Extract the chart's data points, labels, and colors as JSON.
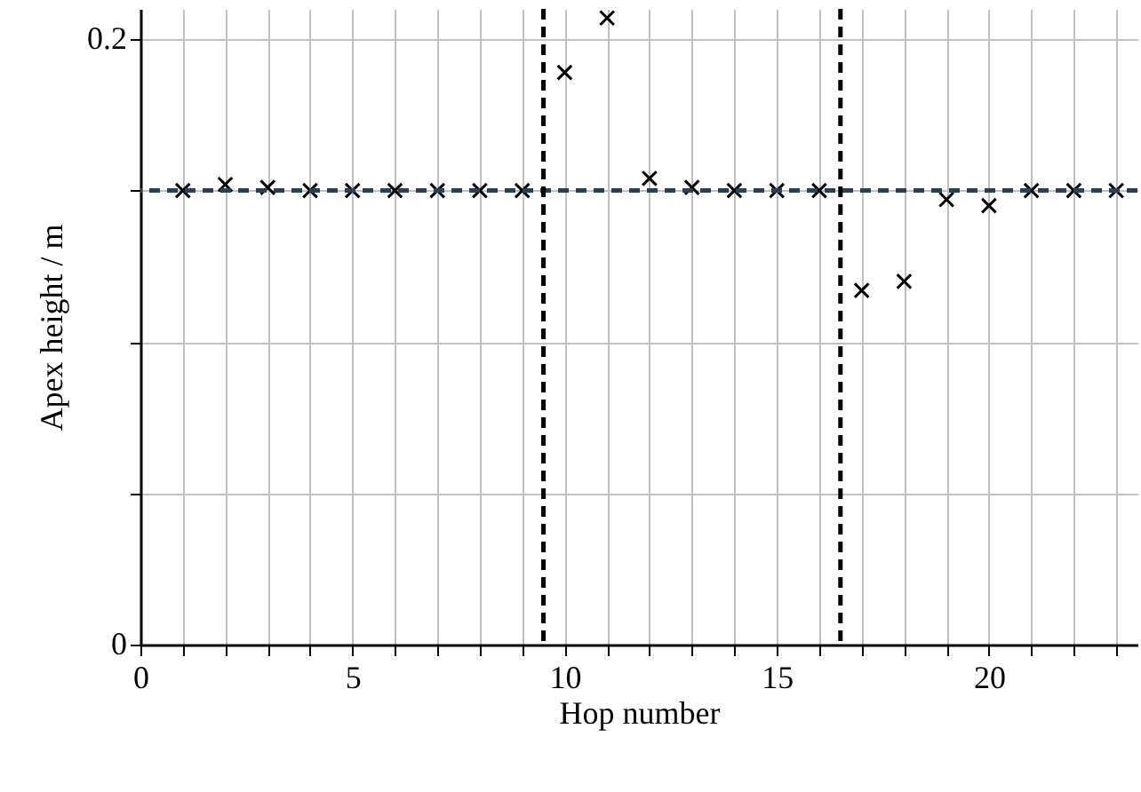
{
  "chart_data": {
    "type": "scatter",
    "xlabel": "Hop number",
    "ylabel": "Apex height / m",
    "x": [
      1,
      2,
      3,
      4,
      5,
      6,
      7,
      8,
      9,
      10,
      11,
      12,
      13,
      14,
      15,
      16,
      17,
      18,
      19,
      20,
      21,
      22,
      23
    ],
    "series": [
      {
        "color": "#000000",
        "values": [
          0.15,
          0.152,
          0.151,
          0.15,
          0.15,
          0.15,
          0.15,
          0.15,
          0.15,
          0.189,
          0.207,
          0.154,
          0.151,
          0.15,
          0.15,
          0.15,
          0.117,
          0.12,
          0.147,
          0.145,
          0.15,
          0.15,
          0.15
        ]
      }
    ],
    "marker": "cross",
    "xlim": [
      0,
      23.5
    ],
    "xticks": [
      0,
      {
        "value": 1,
        "label": null
      },
      {
        "value": 2,
        "label": null
      },
      {
        "value": 3,
        "label": null
      },
      {
        "value": 4,
        "label": null
      },
      5,
      {
        "value": 6,
        "label": null
      },
      {
        "value": 7,
        "label": null
      },
      {
        "value": 8,
        "label": null
      },
      {
        "value": 9,
        "label": null
      },
      10,
      {
        "value": 11,
        "label": null
      },
      {
        "value": 12,
        "label": null
      },
      {
        "value": 13,
        "label": null
      },
      {
        "value": 14,
        "label": null
      },
      15,
      {
        "value": 16,
        "label": null
      },
      {
        "value": 17,
        "label": null
      },
      {
        "value": 18,
        "label": null
      },
      {
        "value": 19,
        "label": null
      },
      20,
      {
        "value": 21,
        "label": null
      },
      {
        "value": 22,
        "label": null
      },
      {
        "value": 23,
        "label": null
      }
    ],
    "ylim": [
      0,
      0.21
    ],
    "yticks": [
      0,
      {
        "value": 0.05,
        "label": null
      },
      {
        "value": 0.1,
        "label": null
      },
      {
        "value": 0.15,
        "label": null
      },
      0.2
    ],
    "grid": true,
    "ref_lines": [
      {
        "axis": "y",
        "value": 0.15,
        "color": "#2f3f4f",
        "line_style": "dashed"
      },
      {
        "axis": "x",
        "value": 9.5,
        "color": "#000000",
        "line_style": "dashed"
      },
      {
        "axis": "x",
        "value": 16.5,
        "color": "#000000",
        "line_style": "dashed"
      }
    ]
  }
}
